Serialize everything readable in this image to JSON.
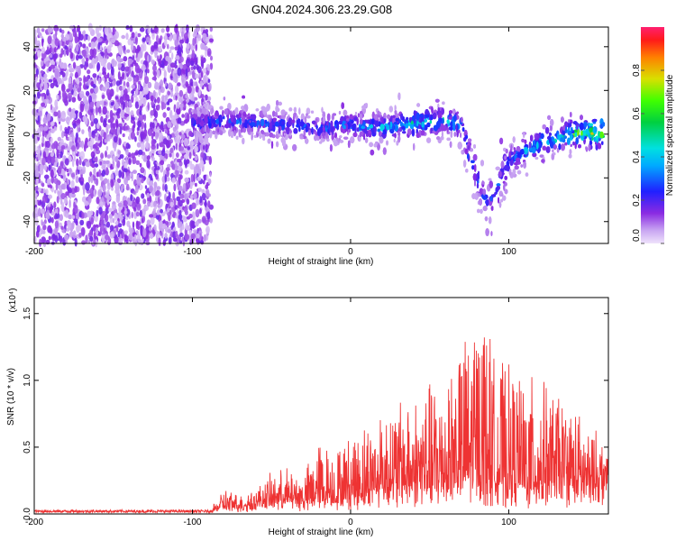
{
  "title": "GN04.2024.306.23.29.G08",
  "chart_data": [
    {
      "type": "heatmap",
      "xlabel": "Height of straight line (km)",
      "ylabel": "Frequency (Hz)",
      "xlim": [
        -200,
        163
      ],
      "ylim": [
        -50,
        49
      ],
      "xticks": [
        "-200",
        "-100",
        "0",
        "100"
      ],
      "xtick_values": [
        -200,
        -100,
        0,
        100
      ],
      "yticks": [
        "-40",
        "-20",
        "0",
        "20",
        "40"
      ],
      "ytick_values": [
        -40,
        -20,
        0,
        20,
        40
      ],
      "colorbar": {
        "label": "Normalized spectral amplitude",
        "range": [
          0,
          1
        ],
        "ticks": [
          "0.0",
          "0.2",
          "0.4",
          "0.6",
          "0.8"
        ],
        "tick_values": [
          0.0,
          0.2,
          0.4,
          0.6,
          0.8
        ]
      },
      "ridge": {
        "x": [
          -100,
          -80,
          -60,
          -40,
          -20,
          0,
          20,
          40,
          60,
          70,
          75,
          85,
          90,
          100,
          110,
          120,
          130,
          140,
          150,
          160
        ],
        "freq_center": [
          5,
          6,
          5,
          4,
          3,
          4,
          3,
          5,
          6,
          4,
          -10,
          -30,
          -30,
          -12,
          -8,
          -4,
          -2,
          0,
          1,
          1
        ],
        "amplitude": [
          0.25,
          0.3,
          0.3,
          0.3,
          0.3,
          0.35,
          0.4,
          0.5,
          0.45,
          0.4,
          0.3,
          0.25,
          0.3,
          0.35,
          0.4,
          0.45,
          0.55,
          0.6,
          0.8,
          0.9
        ]
      },
      "noise_floor_region_x": [
        -200,
        -92
      ],
      "grid": false,
      "colormap": "rainbow (purple-blue-cyan-green-yellow-red)"
    },
    {
      "type": "line",
      "xlabel": "Height of straight line (km)",
      "ylabel": "SNR (10 * v/v)",
      "scale_label": "(x10⁴)",
      "xlim": [
        -200,
        163
      ],
      "ylim": [
        0,
        1.62
      ],
      "xticks": [
        "-200",
        "-100",
        "0",
        "100"
      ],
      "xtick_values": [
        -200,
        -100,
        0,
        100
      ],
      "yticks": [
        "0.0",
        "0.5",
        "1.0",
        "1.5"
      ],
      "ytick_values": [
        0.0,
        0.5,
        1.0,
        1.5
      ],
      "series": [
        {
          "color": "#ee3333",
          "envelope_x": [
            -200,
            -90,
            -85,
            -80,
            -70,
            -60,
            -50,
            -40,
            -30,
            -20,
            -10,
            0,
            20,
            40,
            60,
            75,
            80,
            85,
            90,
            100,
            120,
            140,
            150,
            163
          ],
          "envelope_max": [
            0.03,
            0.04,
            0.1,
            0.2,
            0.15,
            0.2,
            0.3,
            0.35,
            0.3,
            0.55,
            0.5,
            0.6,
            0.8,
            0.9,
            1.1,
            1.4,
            1.55,
            1.62,
            1.2,
            1.1,
            1.0,
            0.85,
            0.65,
            0.55
          ],
          "baseline": [
            0.02,
            0.02,
            0.04,
            0.05,
            0.05,
            0.07,
            0.1,
            0.1,
            0.08,
            0.12,
            0.1,
            0.12,
            0.18,
            0.2,
            0.22,
            0.22,
            0.25,
            0.25,
            0.2,
            0.18,
            0.2,
            0.2,
            0.22,
            0.3
          ]
        }
      ],
      "grid": false
    }
  ]
}
